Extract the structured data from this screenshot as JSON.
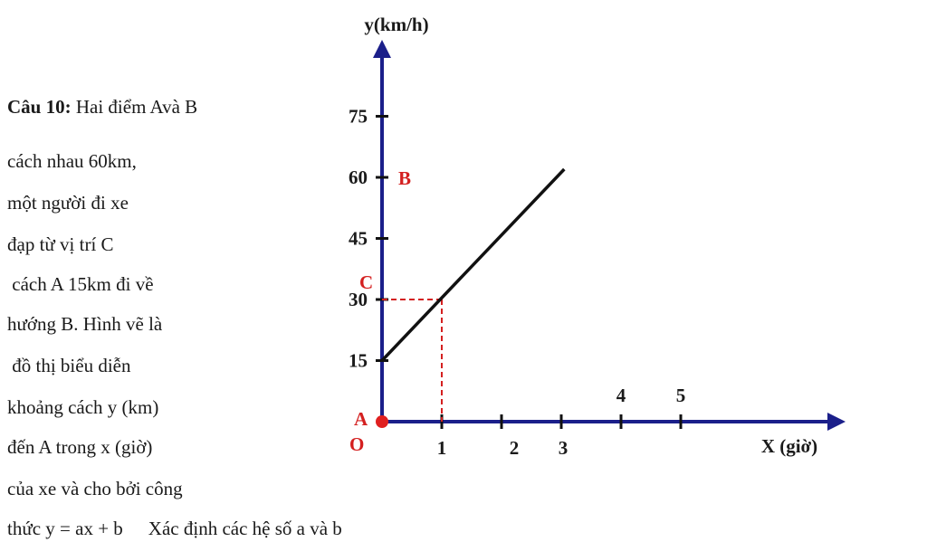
{
  "problem": {
    "title": "Câu 10:",
    "lines": [
      "Hai điểm Avà B",
      "cách nhau 60km,",
      "một người đi xe",
      "đạp từ vị trí C",
      " cách A 15km đi về",
      "hướng B. Hình vẽ là",
      " đồ thị biểu diễn",
      "khoảng cách y (km)",
      "đến A trong x (giờ)",
      "của xe và cho bởi công",
      "thức y = ax + b",
      "Xác định các hệ số a và b"
    ]
  },
  "chart_data": {
    "type": "line",
    "ylabel": "y(km/h)",
    "xlabel": "X (giờ)",
    "origin_label": "O",
    "x_ticks": [
      "1",
      "2",
      "3",
      "4",
      "5"
    ],
    "y_ticks": [
      "15",
      "30",
      "45",
      "60",
      "75"
    ],
    "point_labels": {
      "A": "A",
      "B": "B",
      "C": "C"
    },
    "series": [
      {
        "x": [
          0,
          3.05
        ],
        "y": [
          15,
          62
        ]
      }
    ],
    "guide_point": {
      "x": 1,
      "y": 30
    },
    "colors": {
      "axis": "#1b1f8a",
      "line": "#111111",
      "guide": "#d42020",
      "label": "#d42020"
    }
  }
}
